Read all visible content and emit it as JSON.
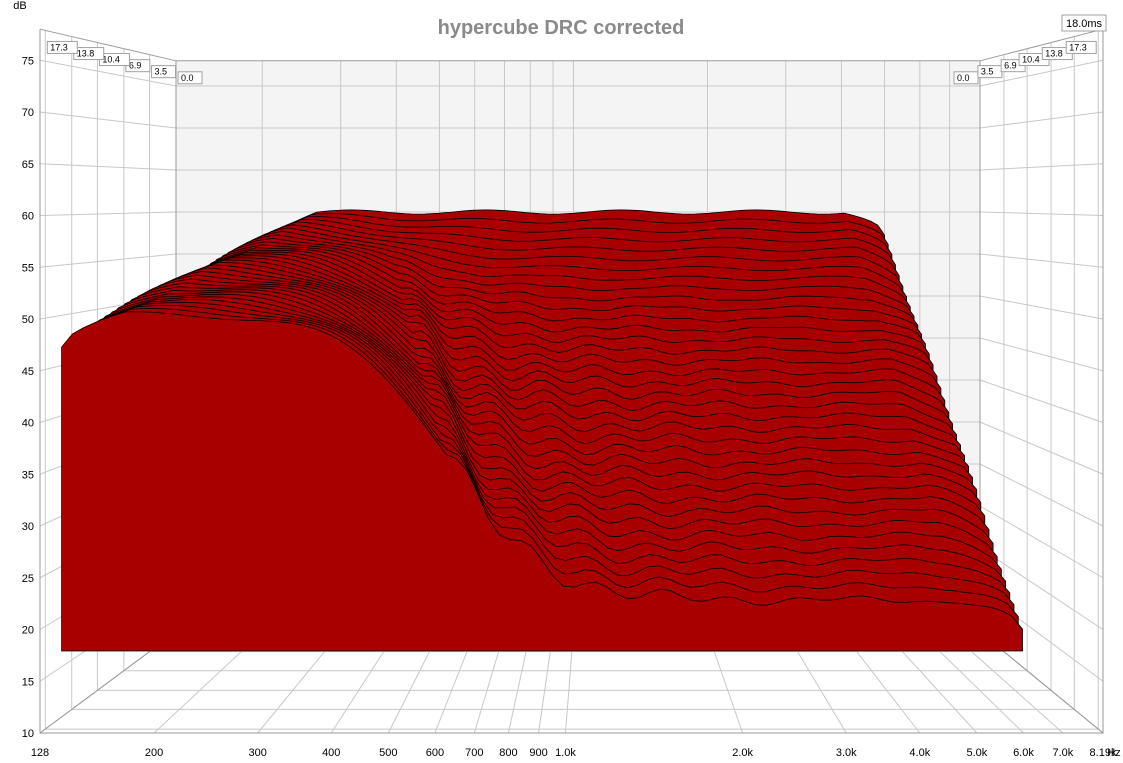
{
  "chart_data": {
    "type": "waterfall",
    "title": "hypercube DRC corrected",
    "ylabel": "dB",
    "xunit": "Hz",
    "ylim": [
      10,
      78
    ],
    "xlim": [
      128,
      8190
    ],
    "x_scale": "log",
    "y_ticks": [
      {
        "value": 10,
        "label": "10"
      },
      {
        "value": 15,
        "label": "15"
      },
      {
        "value": 20,
        "label": "20"
      },
      {
        "value": 25,
        "label": "25"
      },
      {
        "value": 30,
        "label": "30"
      },
      {
        "value": 35,
        "label": "35"
      },
      {
        "value": 40,
        "label": "40"
      },
      {
        "value": 45,
        "label": "45"
      },
      {
        "value": 50,
        "label": "50"
      },
      {
        "value": 55,
        "label": "55"
      },
      {
        "value": 60,
        "label": "60"
      },
      {
        "value": 65,
        "label": "65"
      },
      {
        "value": 70,
        "label": "70"
      },
      {
        "value": 75,
        "label": "75"
      }
    ],
    "x_ticks": [
      {
        "value": 128,
        "label": "128"
      },
      {
        "value": 200,
        "label": "200"
      },
      {
        "value": 300,
        "label": "300"
      },
      {
        "value": 400,
        "label": "400"
      },
      {
        "value": 500,
        "label": "500"
      },
      {
        "value": 600,
        "label": "600"
      },
      {
        "value": 700,
        "label": "700"
      },
      {
        "value": 800,
        "label": "800"
      },
      {
        "value": 900,
        "label": "900"
      },
      {
        "value": 1000,
        "label": "1.0k"
      },
      {
        "value": 2000,
        "label": "2.0k"
      },
      {
        "value": 3000,
        "label": "3.0k"
      },
      {
        "value": 4000,
        "label": "4.0k"
      },
      {
        "value": 5000,
        "label": "5.0k"
      },
      {
        "value": 6000,
        "label": "6.0k"
      },
      {
        "value": 7000,
        "label": "7.0k"
      },
      {
        "value": 8190,
        "label": "8.19k"
      }
    ],
    "time_ticks": [
      {
        "value": 0.0,
        "label": "0.0"
      },
      {
        "value": 3.5,
        "label": "3.5"
      },
      {
        "value": 6.9,
        "label": "6.9"
      },
      {
        "value": 10.4,
        "label": "10.4"
      },
      {
        "value": 13.8,
        "label": "13.8"
      },
      {
        "value": 17.3,
        "label": "17.3"
      }
    ],
    "time_max_label": "18.0ms",
    "time_max": 18.0,
    "slice_count": 36,
    "surface_color": "#a80000",
    "grid": true
  }
}
